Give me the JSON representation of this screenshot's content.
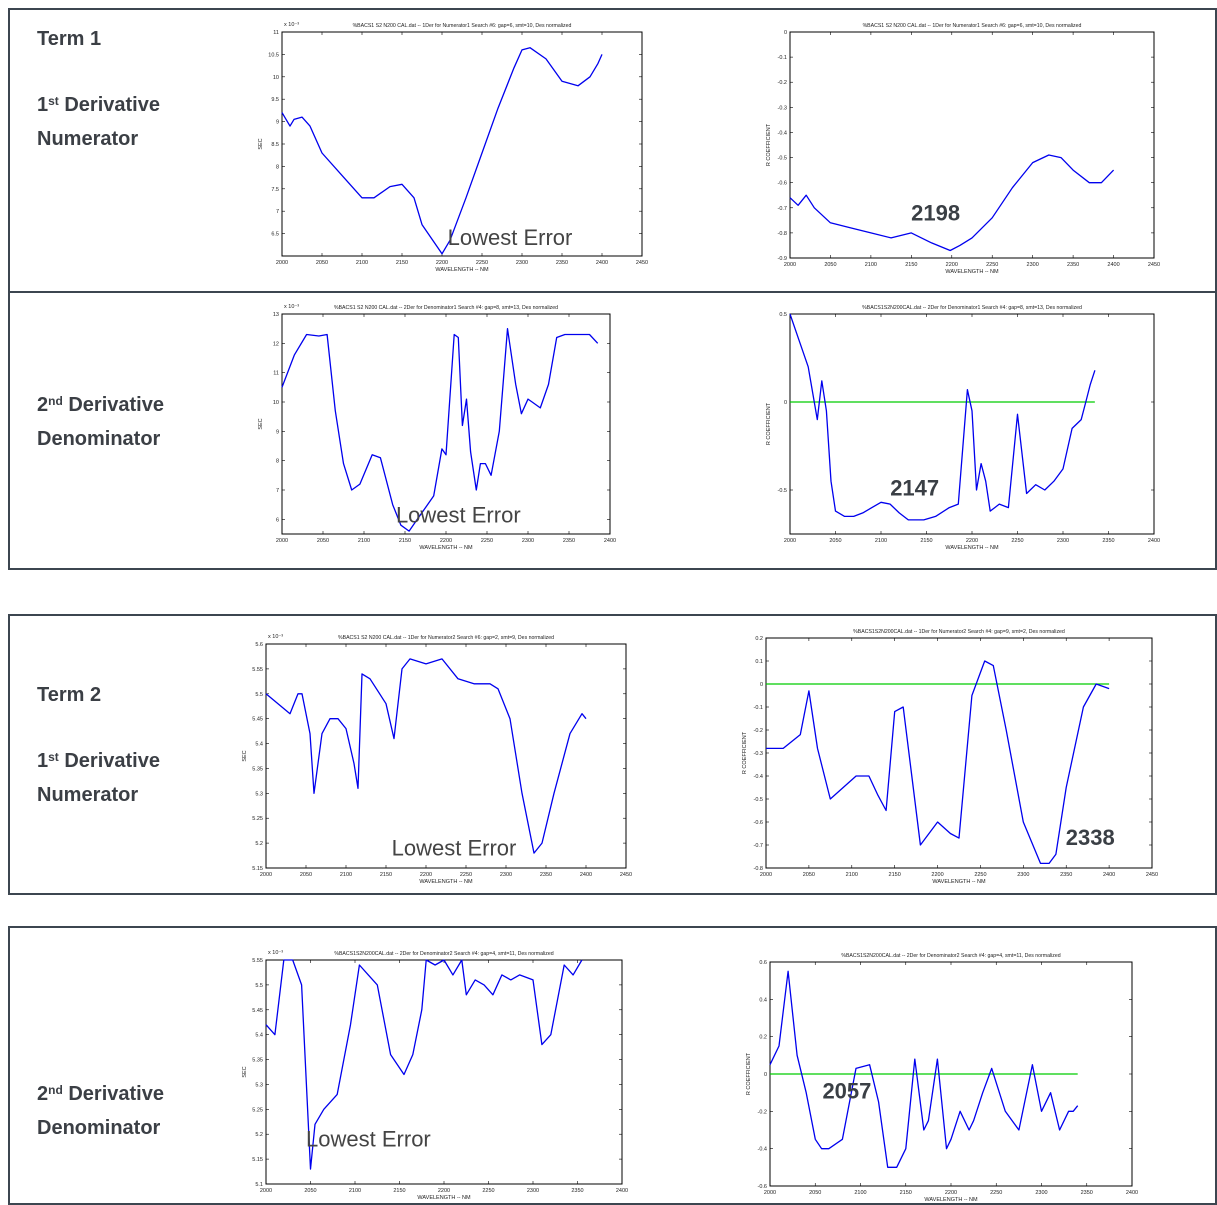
{
  "sections": [
    {
      "term": "Term 1",
      "ordinal": "1",
      "ord_suffix": "st",
      "line1": "Derivative",
      "line2": "Numerator"
    },
    {
      "term": "",
      "ordinal": "2",
      "ord_suffix": "nd",
      "line1": "Derivative",
      "line2": "Denominator"
    },
    {
      "term": "Term 2",
      "ordinal": "1",
      "ord_suffix": "st",
      "line1": "Derivative",
      "line2": "Numerator"
    },
    {
      "term": "",
      "ordinal": "2",
      "ord_suffix": "nd",
      "line1": "Derivative",
      "line2": "Denominator"
    }
  ],
  "chart_data": [
    {
      "id": "t1_num_sec",
      "type": "line",
      "title": "%BACS1 S2 N200 CAL.dat -- 1Der for Numerator1 Search #6: gap=6, smt=10, Des normalized",
      "xlabel": "WAVELENGTH -- NM",
      "ylabel": "SEC",
      "exponent": "x 10⁻³",
      "xlim": [
        2000,
        2450
      ],
      "ylim": [
        6,
        11
      ],
      "xticks": [
        2000,
        2050,
        2100,
        2150,
        2200,
        2250,
        2300,
        2350,
        2400,
        2450
      ],
      "yticks": [
        6.5,
        7,
        7.5,
        8,
        8.5,
        9,
        9.5,
        10,
        10.5,
        11
      ],
      "annotation": "Lowest Error",
      "series": [
        {
          "color": "#0000ee",
          "x": [
            2000,
            2010,
            2015,
            2025,
            2035,
            2050,
            2075,
            2100,
            2115,
            2135,
            2150,
            2165,
            2175,
            2200,
            2210,
            2230,
            2250,
            2270,
            2290,
            2300,
            2310,
            2330,
            2350,
            2370,
            2385,
            2395,
            2400
          ],
          "y": [
            9.2,
            8.9,
            9.05,
            9.1,
            8.9,
            8.3,
            7.8,
            7.3,
            7.3,
            7.55,
            7.6,
            7.3,
            6.7,
            6.05,
            6.35,
            7.3,
            8.3,
            9.3,
            10.2,
            10.6,
            10.65,
            10.4,
            9.9,
            9.8,
            10,
            10.3,
            10.5
          ]
        }
      ]
    },
    {
      "id": "t1_num_r",
      "type": "line",
      "title": "%BACS1 S2 N200 CAL.dat -- 1Der for Numerator1 Search #6: gap=6, smt=10, Des normalized",
      "xlabel": "WAVELENGTH -- NM",
      "ylabel": "R COEFFICIENT",
      "xlim": [
        2000,
        2450
      ],
      "ylim": [
        -0.9,
        0
      ],
      "xticks": [
        2000,
        2050,
        2100,
        2150,
        2200,
        2250,
        2300,
        2350,
        2400,
        2450
      ],
      "yticks": [
        0,
        -0.1,
        -0.2,
        -0.3,
        -0.4,
        -0.5,
        -0.6,
        -0.7,
        -0.8,
        -0.9
      ],
      "annotation": "2198",
      "series": [
        {
          "color": "#0000ee",
          "x": [
            2000,
            2010,
            2020,
            2030,
            2050,
            2075,
            2100,
            2125,
            2150,
            2175,
            2198,
            2210,
            2225,
            2250,
            2275,
            2300,
            2320,
            2335,
            2350,
            2370,
            2385,
            2400
          ],
          "y": [
            -0.66,
            -0.69,
            -0.65,
            -0.7,
            -0.76,
            -0.78,
            -0.8,
            -0.82,
            -0.8,
            -0.84,
            -0.87,
            -0.85,
            -0.82,
            -0.74,
            -0.62,
            -0.52,
            -0.49,
            -0.5,
            -0.55,
            -0.6,
            -0.6,
            -0.55
          ]
        }
      ]
    },
    {
      "id": "t1_den_sec",
      "type": "line",
      "title": "%BACS1 S2 N200 CAL.dat -- 2Der for Denominator1 Search #4: gap=8, smt=13, Des normalized",
      "xlabel": "WAVELENGTH -- NM",
      "ylabel": "SEC",
      "exponent": "x 10⁻³",
      "xlim": [
        2000,
        2400
      ],
      "ylim": [
        5.5,
        13
      ],
      "xticks": [
        2000,
        2050,
        2100,
        2150,
        2200,
        2250,
        2300,
        2350,
        2400
      ],
      "yticks": [
        6,
        7,
        8,
        9,
        10,
        11,
        12,
        13
      ],
      "annotation": "Lowest Error",
      "series": [
        {
          "color": "#0000ee",
          "x": [
            2000,
            2015,
            2030,
            2045,
            2055,
            2065,
            2075,
            2085,
            2095,
            2110,
            2120,
            2135,
            2145,
            2155,
            2165,
            2175,
            2185,
            2195,
            2200,
            2210,
            2215,
            2220,
            2225,
            2230,
            2237,
            2242,
            2248,
            2255,
            2265,
            2275,
            2285,
            2292,
            2300,
            2305,
            2315,
            2325,
            2335,
            2345,
            2360,
            2375,
            2385
          ],
          "y": [
            10.5,
            11.6,
            12.3,
            12.25,
            12.3,
            9.7,
            7.9,
            7.0,
            7.2,
            8.2,
            8.1,
            6.5,
            5.8,
            5.6,
            6.0,
            6.4,
            6.8,
            8.4,
            8.2,
            12.3,
            12.2,
            9.2,
            10.1,
            8.3,
            7.0,
            7.9,
            7.9,
            7.5,
            9.0,
            12.5,
            10.6,
            9.6,
            10.1,
            10.0,
            9.8,
            10.6,
            12.2,
            12.3,
            12.3,
            12.3,
            12.0
          ]
        }
      ]
    },
    {
      "id": "t1_den_r",
      "type": "line",
      "title": "%BACS1S2N200CAL.dat -- 2Der for Denominator1 Search #4: gap=8, smt=13, Des normalized",
      "xlabel": "WAVELENGTH -- NM",
      "ylabel": "R COEFFICIENT",
      "xlim": [
        2000,
        2400
      ],
      "ylim": [
        -0.75,
        0.5
      ],
      "xticks": [
        2000,
        2050,
        2100,
        2150,
        2200,
        2250,
        2300,
        2350,
        2400
      ],
      "yticks": [
        0.5,
        0,
        -0.5
      ],
      "annotation": "2147",
      "reference_line": {
        "y": 0,
        "color": "#00cc00"
      },
      "series": [
        {
          "color": "#0000ee",
          "x": [
            2000,
            2010,
            2020,
            2030,
            2035,
            2040,
            2045,
            2050,
            2060,
            2070,
            2080,
            2090,
            2100,
            2110,
            2120,
            2130,
            2147,
            2160,
            2175,
            2185,
            2195,
            2200,
            2205,
            2210,
            2215,
            2220,
            2225,
            2230,
            2240,
            2250,
            2260,
            2270,
            2280,
            2290,
            2300,
            2310,
            2320,
            2325,
            2330,
            2335
          ],
          "y": [
            0.5,
            0.35,
            0.2,
            -0.1,
            0.12,
            -0.05,
            -0.45,
            -0.62,
            -0.65,
            -0.65,
            -0.63,
            -0.6,
            -0.57,
            -0.58,
            -0.63,
            -0.67,
            -0.67,
            -0.65,
            -0.6,
            -0.58,
            0.07,
            -0.05,
            -0.5,
            -0.35,
            -0.45,
            -0.62,
            -0.6,
            -0.58,
            -0.6,
            -0.07,
            -0.52,
            -0.47,
            -0.5,
            -0.45,
            -0.38,
            -0.15,
            -0.1,
            0.0,
            0.1,
            0.18
          ]
        }
      ]
    },
    {
      "id": "t2_num_sec",
      "type": "line",
      "title": "%BACS1 S2 N200 CAL.dat -- 1Der for Numerator2 Search #6: gap=2, smt=9, Des normalized",
      "xlabel": "WAVELENGTH -- NM",
      "ylabel": "SEC",
      "exponent": "x 10⁻³",
      "xlim": [
        2000,
        2450
      ],
      "ylim": [
        5.15,
        5.6
      ],
      "xticks": [
        2000,
        2050,
        2100,
        2150,
        2200,
        2250,
        2300,
        2350,
        2400,
        2450
      ],
      "yticks": [
        5.6,
        5.55,
        5.5,
        5.45,
        5.4,
        5.35,
        5.3,
        5.25,
        5.2,
        5.15
      ],
      "annotation": "Lowest Error",
      "series": [
        {
          "color": "#0000ee",
          "x": [
            2000,
            2015,
            2030,
            2040,
            2045,
            2055,
            2060,
            2070,
            2080,
            2090,
            2100,
            2110,
            2115,
            2120,
            2130,
            2150,
            2160,
            2170,
            2180,
            2200,
            2220,
            2240,
            2260,
            2280,
            2290,
            2305,
            2320,
            2335,
            2345,
            2360,
            2380,
            2395,
            2400
          ],
          "y": [
            5.5,
            5.48,
            5.46,
            5.5,
            5.5,
            5.42,
            5.3,
            5.42,
            5.45,
            5.45,
            5.43,
            5.36,
            5.31,
            5.54,
            5.53,
            5.48,
            5.41,
            5.55,
            5.57,
            5.56,
            5.57,
            5.53,
            5.52,
            5.52,
            5.51,
            5.45,
            5.3,
            5.18,
            5.2,
            5.3,
            5.42,
            5.46,
            5.45
          ]
        }
      ]
    },
    {
      "id": "t2_num_r",
      "type": "line",
      "title": "%BACS1S2N200CAL.dat -- 1Der for Numerator2 Search #4: gap=9, smt=2, Des normalized",
      "xlabel": "WAVELENGTH -- NM",
      "ylabel": "R COEFFICIENT",
      "xlim": [
        2000,
        2450
      ],
      "ylim": [
        -0.8,
        0.2
      ],
      "xticks": [
        2000,
        2050,
        2100,
        2150,
        2200,
        2250,
        2300,
        2350,
        2400,
        2450
      ],
      "yticks": [
        0.2,
        0.1,
        0,
        -0.1,
        -0.2,
        -0.3,
        -0.4,
        -0.5,
        -0.6,
        -0.7,
        -0.8
      ],
      "annotation": "2338",
      "reference_line": {
        "y": 0,
        "color": "#00cc00"
      },
      "series": [
        {
          "color": "#0000ee",
          "x": [
            2000,
            2020,
            2040,
            2050,
            2060,
            2075,
            2090,
            2105,
            2120,
            2130,
            2140,
            2150,
            2160,
            2170,
            2180,
            2190,
            2200,
            2215,
            2225,
            2240,
            2255,
            2265,
            2280,
            2300,
            2320,
            2330,
            2338,
            2350,
            2370,
            2385,
            2400
          ],
          "y": [
            -0.28,
            -0.28,
            -0.22,
            -0.03,
            -0.28,
            -0.5,
            -0.45,
            -0.4,
            -0.4,
            -0.48,
            -0.55,
            -0.12,
            -0.1,
            -0.4,
            -0.7,
            -0.65,
            -0.6,
            -0.65,
            -0.67,
            -0.05,
            0.1,
            0.08,
            -0.2,
            -0.6,
            -0.78,
            -0.78,
            -0.74,
            -0.45,
            -0.1,
            0,
            -0.02
          ]
        }
      ]
    },
    {
      "id": "t2_den_sec",
      "type": "line",
      "title": "%BACS1S2N200CAL.dat -- 2Der for Denominator2 Search #4: gap=4, smt=11, Des normalized",
      "xlabel": "WAVELENGTH -- NM",
      "ylabel": "SEC",
      "exponent": "x 10⁻³",
      "xlim": [
        2000,
        2400
      ],
      "ylim": [
        5.1,
        5.55
      ],
      "xticks": [
        2000,
        2050,
        2100,
        2150,
        2200,
        2250,
        2300,
        2350,
        2400
      ],
      "yticks": [
        5.55,
        5.5,
        5.45,
        5.4,
        5.35,
        5.3,
        5.25,
        5.2,
        5.15,
        5.1
      ],
      "annotation": "Lowest Error",
      "series": [
        {
          "color": "#0000ee",
          "x": [
            2000,
            2010,
            2020,
            2030,
            2040,
            2050,
            2055,
            2065,
            2080,
            2095,
            2105,
            2115,
            2125,
            2140,
            2155,
            2165,
            2175,
            2180,
            2190,
            2200,
            2210,
            2220,
            2225,
            2235,
            2245,
            2255,
            2265,
            2275,
            2285,
            2300,
            2310,
            2320,
            2335,
            2345,
            2355
          ],
          "y": [
            5.42,
            5.4,
            5.55,
            5.55,
            5.5,
            5.13,
            5.22,
            5.25,
            5.28,
            5.42,
            5.54,
            5.52,
            5.5,
            5.36,
            5.32,
            5.36,
            5.45,
            5.55,
            5.54,
            5.55,
            5.52,
            5.55,
            5.48,
            5.51,
            5.5,
            5.48,
            5.52,
            5.51,
            5.52,
            5.51,
            5.38,
            5.4,
            5.54,
            5.52,
            5.55
          ]
        }
      ]
    },
    {
      "id": "t2_den_r",
      "type": "line",
      "title": "%BACS1S2N200CAL.dat -- 2Der for Denominator2 Search #4: gap=4, smt=11, Des normalized",
      "xlabel": "WAVELENGTH -- NM",
      "ylabel": "R COEFFICIENT",
      "xlim": [
        2000,
        2400
      ],
      "ylim": [
        -0.6,
        0.6
      ],
      "xticks": [
        2000,
        2050,
        2100,
        2150,
        2200,
        2250,
        2300,
        2350,
        2400
      ],
      "yticks": [
        0.6,
        0.4,
        0.2,
        0,
        -0.2,
        -0.4,
        -0.6
      ],
      "annotation": "2057",
      "reference_line": {
        "y": 0,
        "color": "#00cc00"
      },
      "series": [
        {
          "color": "#0000ee",
          "x": [
            2000,
            2010,
            2020,
            2030,
            2040,
            2050,
            2057,
            2065,
            2080,
            2095,
            2110,
            2120,
            2130,
            2140,
            2150,
            2160,
            2170,
            2175,
            2185,
            2195,
            2200,
            2210,
            2220,
            2225,
            2235,
            2245,
            2260,
            2275,
            2290,
            2300,
            2310,
            2320,
            2330,
            2335,
            2340
          ],
          "y": [
            0.05,
            0.15,
            0.55,
            0.1,
            -0.1,
            -0.35,
            -0.4,
            -0.4,
            -0.35,
            0.03,
            0.05,
            -0.15,
            -0.5,
            -0.5,
            -0.4,
            0.08,
            -0.3,
            -0.25,
            0.08,
            -0.4,
            -0.35,
            -0.2,
            -0.3,
            -0.25,
            -0.1,
            0.03,
            -0.2,
            -0.3,
            0.05,
            -0.2,
            -0.1,
            -0.3,
            -0.2,
            -0.2,
            -0.17
          ]
        }
      ]
    }
  ]
}
